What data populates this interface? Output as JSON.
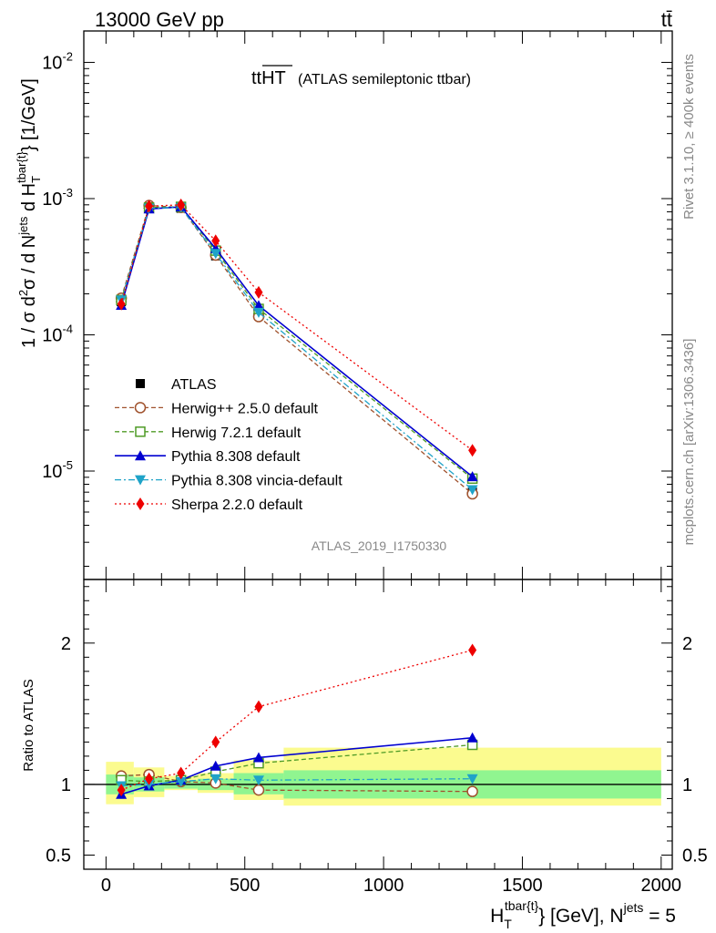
{
  "header": {
    "energy_label": "13000 GeV pp",
    "process_label": "tt̄"
  },
  "side_labels": {
    "rivet": "Rivet 3.1.10, ≥ 400k events",
    "mcplots": "mcplots.cern.ch [arXiv:1306.3436]"
  },
  "plot_title": {
    "main": "ttHT",
    "sub": "(ATLAS semileptonic ttbar)"
  },
  "analysis_id": "ATLAS_2019_I1750330",
  "chart_data": [
    {
      "panel": "main",
      "type": "line",
      "scale_y": "log",
      "ylabel": "1 / σ d²σ / d N^jets d H_T^tbar{t} [1/GeV]",
      "ylabel_parts": {
        "prefix": "1 / σ d",
        "sup1": "2",
        "mid": "σ / d N",
        "sup2": "jets",
        "mid2": " d H",
        "sub3": "T",
        "sup3": "tbar{t}",
        "suffix": "} [1/GeV]"
      },
      "xlim": [
        -80,
        2040
      ],
      "ylim": [
        1.6e-06,
        0.017
      ],
      "y_ticks": [
        {
          "value": 0.01,
          "base": "10",
          "exp": "-2"
        },
        {
          "value": 0.001,
          "base": "10",
          "exp": "-3"
        },
        {
          "value": 0.0001,
          "base": "10",
          "exp": "-4"
        },
        {
          "value": 1e-05,
          "base": "10",
          "exp": "-5"
        }
      ],
      "bins": [
        {
          "lo": 0,
          "hi": 100
        },
        {
          "lo": 100,
          "hi": 210
        },
        {
          "lo": 210,
          "hi": 330
        },
        {
          "lo": 330,
          "hi": 460
        },
        {
          "lo": 460,
          "hi": 640
        },
        {
          "lo": 640,
          "hi": 2000
        }
      ],
      "x": [
        55,
        155,
        270,
        395,
        550,
        1320
      ],
      "series": [
        {
          "name": "ATLAS",
          "label": "ATLAS",
          "color": "#000000",
          "marker": "filled-square",
          "line": "none",
          "values": [
            0.000175,
            0.00085,
            0.00085,
            0.00038,
            0.000142,
            7e-06
          ]
        },
        {
          "name": "Herwig++ 2.5.0 default",
          "label": "Herwig++ 2.5.0 default",
          "color": "#a0522d",
          "marker": "open-circle",
          "line": "dashed",
          "values": [
            0.000186,
            0.00089,
            0.00086,
            0.000385,
            0.000136,
            6.8e-06
          ]
        },
        {
          "name": "Herwig 7.2.1 default",
          "label": "Herwig 7.2.1 default",
          "color": "#4f9b26",
          "marker": "open-square",
          "line": "dashed",
          "values": [
            0.00018,
            0.00086,
            0.00087,
            0.000415,
            0.000155,
            8.8e-06
          ]
        },
        {
          "name": "Pythia 8.308 default",
          "label": "Pythia 8.308 default",
          "color": "#0000d0",
          "marker": "filled-triangle-up",
          "line": "solid",
          "values": [
            0.000165,
            0.00084,
            0.00087,
            0.00043,
            0.000164,
            9.1e-06
          ]
        },
        {
          "name": "Pythia 8.308 vincia-default",
          "label": "Pythia 8.308 vincia-default",
          "color": "#1fa3c8",
          "marker": "filled-triangle-down",
          "line": "dashdot",
          "values": [
            0.00018,
            0.00085,
            0.00086,
            0.000395,
            0.000146,
            7.3e-06
          ]
        },
        {
          "name": "Sherpa 2.2.0 default",
          "label": "Sherpa 2.2.0 default",
          "color": "#ee0000",
          "marker": "filled-diamond",
          "line": "dotted",
          "values": [
            0.000168,
            0.00088,
            0.0009,
            0.00049,
            0.000205,
            1.42e-05
          ]
        }
      ]
    },
    {
      "panel": "ratio",
      "type": "line",
      "ylabel": "Ratio to ATLAS",
      "xlabel": "H_T^tbar{t}} [GeV], N^jets = 5",
      "xlabel_parts": {
        "H": "H",
        "sub": "T",
        "sup": "tbar{t}",
        "rest": "} [GeV], N",
        "sup2": "jets",
        "tail": " = 5"
      },
      "xlim": [
        -80,
        2040
      ],
      "ylim": [
        0.4,
        2.45
      ],
      "x_ticks": [
        0,
        500,
        1000,
        1500,
        2000
      ],
      "y_ticks": [
        0.5,
        1,
        2
      ],
      "bands": {
        "inner_color": "#90f590",
        "outer_color": "#fbfb8f",
        "inner": [
          [
            0.93,
            1.07
          ],
          [
            0.95,
            1.05
          ],
          [
            0.97,
            1.03
          ],
          [
            0.96,
            1.04
          ],
          [
            0.93,
            1.08
          ],
          [
            0.9,
            1.1
          ]
        ],
        "outer": [
          [
            0.86,
            1.16
          ],
          [
            0.91,
            1.12
          ],
          [
            0.96,
            1.06
          ],
          [
            0.94,
            1.08
          ],
          [
            0.89,
            1.17
          ],
          [
            0.85,
            1.26
          ]
        ]
      },
      "x": [
        55,
        155,
        270,
        395,
        550,
        1320
      ],
      "series": [
        {
          "name": "Herwig++ 2.5.0 default",
          "values": [
            1.06,
            1.07,
            1.02,
            1.01,
            0.96,
            0.95
          ]
        },
        {
          "name": "Herwig 7.2.1 default",
          "values": [
            1.03,
            1.02,
            1.03,
            1.09,
            1.15,
            1.28
          ]
        },
        {
          "name": "Pythia 8.308 default",
          "values": [
            0.93,
            0.99,
            1.03,
            1.13,
            1.19,
            1.33
          ]
        },
        {
          "name": "Pythia 8.308 vincia-default",
          "values": [
            0.99,
            1.0,
            1.02,
            1.04,
            1.03,
            1.04
          ]
        },
        {
          "name": "Sherpa 2.2.0 default",
          "values": [
            0.96,
            1.04,
            1.08,
            1.3,
            1.55,
            1.95
          ]
        }
      ]
    }
  ]
}
